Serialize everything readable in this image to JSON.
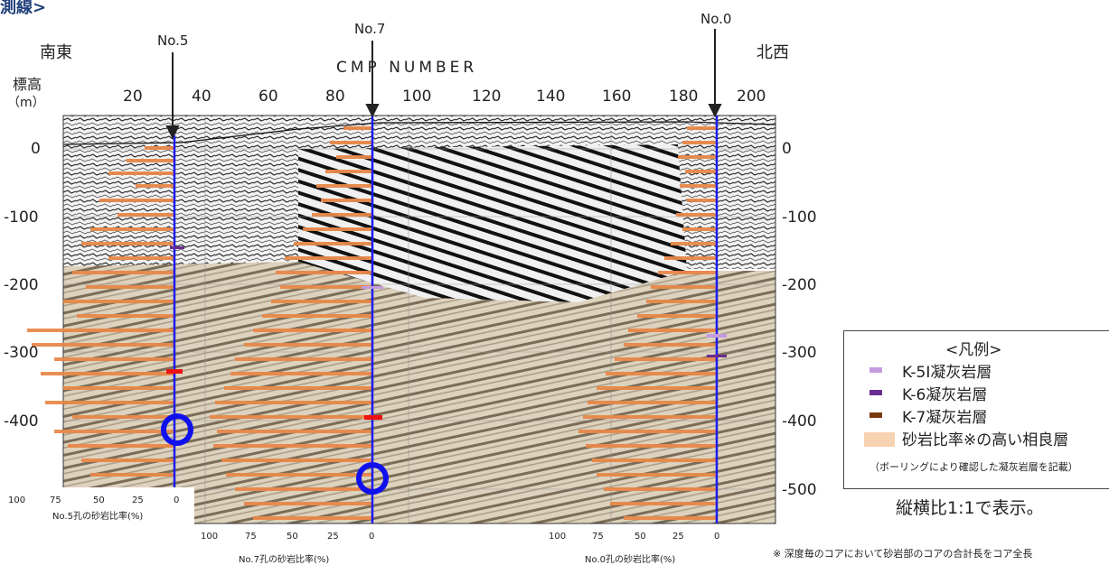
{
  "title_fragment": "測線>",
  "labels": {
    "southeast": "南東",
    "northwest": "北西",
    "cmp_number": "CMP NUMBER",
    "elevation": "標高",
    "elevation_unit": "（m）",
    "aspect_note": "縦横比1:1で表示。",
    "footnote": "※ 深度毎のコアにおいて砂岩部のコアの合計長をコア全長"
  },
  "boreholes": [
    {
      "name": "No.5",
      "axis_label": "No.5孔の砂岩比率(%)"
    },
    {
      "name": "No.7",
      "axis_label": "No.7孔の砂岩比率(%)"
    },
    {
      "name": "No.0",
      "axis_label": "No.0孔の砂岩比率(%)"
    }
  ],
  "cmp_ticks": [
    "20",
    "40",
    "60",
    "80",
    "100",
    "120",
    "140",
    "160",
    "180",
    "200"
  ],
  "depth_ticks": [
    "0",
    "-100",
    "-200",
    "-300",
    "-400",
    "-500"
  ],
  "ratio_ticks": [
    "100",
    "75",
    "50",
    "25",
    "0"
  ],
  "legend": {
    "title": "<凡例>",
    "items": [
      {
        "label": "K-5I凝灰岩層",
        "color": "#c49be0"
      },
      {
        "label": "K-6凝灰岩層",
        "color": "#6a2c91"
      },
      {
        "label": "K-7凝灰岩層",
        "color": "#7a3a10"
      },
      {
        "label": "砂岩比率※の高い相良層",
        "color": "#f7d2b0"
      }
    ],
    "note": "（ボーリングにより確認した凝灰岩層を記載）"
  },
  "colors": {
    "borehole_line": "#1a1aee",
    "sand_bar": "#e8884a",
    "marker_red": "#ee1111",
    "ring": "#1010ee"
  }
}
